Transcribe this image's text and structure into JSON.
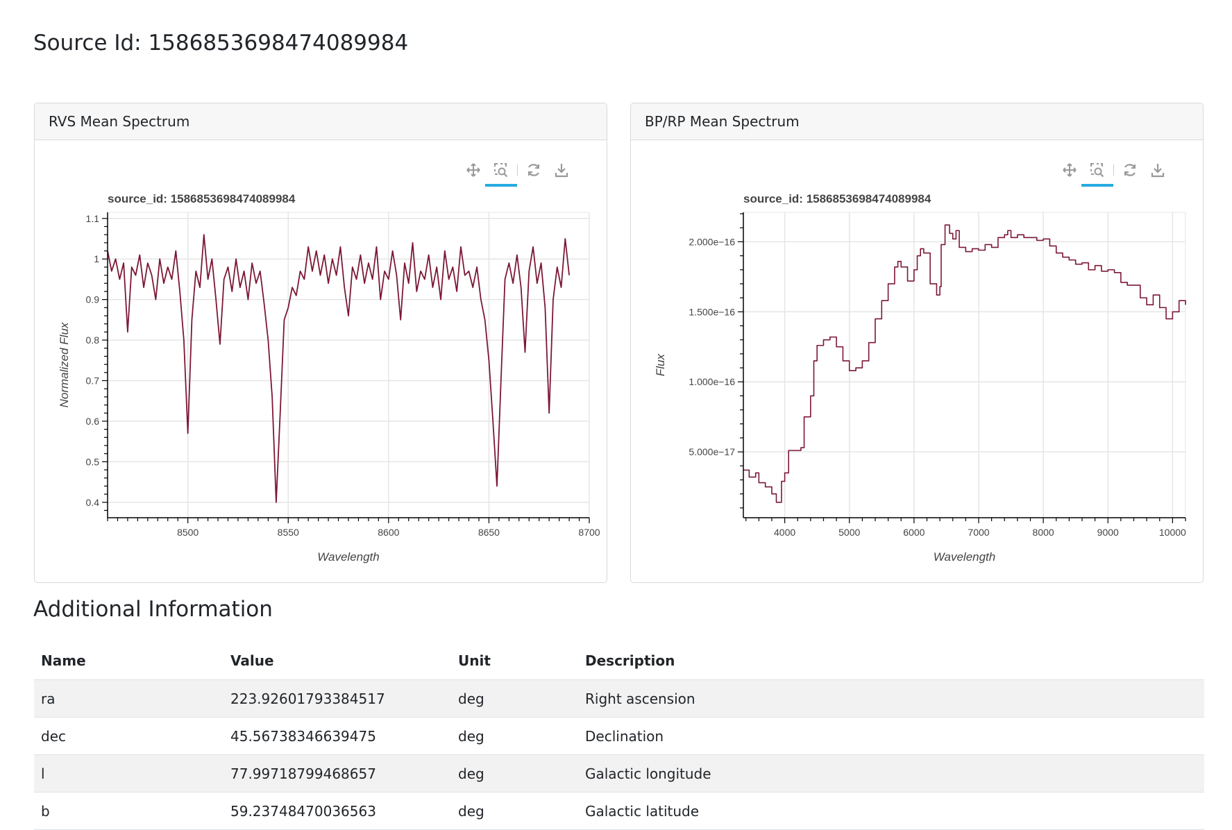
{
  "page": {
    "title": "Source Id: 1586853698474089984"
  },
  "panels": [
    {
      "header": "RVS Mean Spectrum",
      "tools": [
        "pan-icon",
        "box-zoom-icon",
        "reset-icon",
        "save-icon"
      ]
    },
    {
      "header": "BP/RP Mean Spectrum",
      "tools": [
        "pan-icon",
        "box-zoom-icon",
        "reset-icon",
        "save-icon"
      ]
    }
  ],
  "colors": {
    "line": "#7b1734",
    "active_tool": "#26aae1"
  },
  "chart_data": [
    {
      "type": "line",
      "title": "source_id: 1586853698474089984",
      "xlabel": "Wavelength",
      "ylabel": "Normalized Flux",
      "xlim": [
        8460,
        8700
      ],
      "ylim": [
        0.362,
        1.115
      ],
      "xticks": [
        8500,
        8550,
        8600,
        8650,
        8700
      ],
      "xtick_labels": [
        "8500",
        "8550",
        "8600",
        "8650",
        "8700"
      ],
      "yticks": [
        0.4,
        0.5,
        0.6,
        0.7,
        0.8,
        0.9,
        1.0,
        1.1
      ],
      "ytick_labels": [
        "0.4",
        "0.5",
        "0.6",
        "0.7",
        "0.8",
        "0.9",
        "1",
        "1.1"
      ],
      "grid": true,
      "x_start": 8460,
      "x_step": 2,
      "y": [
        1.02,
        0.97,
        1.0,
        0.95,
        0.99,
        0.82,
        0.98,
        0.96,
        1.01,
        0.93,
        0.99,
        0.96,
        0.9,
        1.0,
        0.94,
        0.98,
        0.95,
        1.02,
        0.92,
        0.8,
        0.57,
        0.85,
        0.97,
        0.93,
        1.06,
        0.95,
        1.0,
        0.9,
        0.79,
        0.95,
        0.98,
        0.92,
        1.0,
        0.93,
        0.97,
        0.9,
        0.99,
        0.94,
        0.97,
        0.89,
        0.8,
        0.66,
        0.4,
        0.62,
        0.85,
        0.88,
        0.93,
        0.91,
        0.97,
        0.95,
        1.03,
        0.97,
        1.02,
        0.96,
        1.01,
        0.94,
        1.0,
        0.96,
        1.03,
        0.93,
        0.86,
        0.98,
        0.95,
        1.01,
        0.94,
        0.99,
        0.95,
        1.03,
        0.9,
        0.97,
        0.95,
        1.02,
        0.96,
        0.85,
        0.99,
        0.94,
        1.04,
        0.92,
        0.97,
        0.95,
        1.01,
        0.93,
        0.98,
        0.9,
        1.02,
        0.95,
        0.98,
        0.92,
        1.03,
        0.96,
        0.97,
        0.93,
        0.98,
        0.9,
        0.85,
        0.75,
        0.6,
        0.44,
        0.7,
        0.95,
        0.99,
        0.94,
        1.01,
        0.93,
        0.77,
        0.97,
        1.03,
        0.94,
        0.99,
        0.88,
        0.62,
        0.9,
        0.98,
        0.93,
        1.05,
        0.96
      ]
    },
    {
      "type": "line",
      "title": "source_id: 1586853698474089984",
      "xlabel": "Wavelength",
      "ylabel": "Flux",
      "xlim": [
        3360,
        10200
      ],
      "ylim": [
        3e-18,
        2.21e-16
      ],
      "xticks": [
        4000,
        5000,
        6000,
        7000,
        8000,
        9000,
        10000
      ],
      "xtick_labels": [
        "4000",
        "5000",
        "6000",
        "7000",
        "8000",
        "9000",
        "10000"
      ],
      "yticks": [
        5e-17,
        1e-16,
        1.5e-16,
        2e-16
      ],
      "ytick_labels": [
        "5.000e−17",
        "1.000e−16",
        "1.500e−16",
        "2.000e−16"
      ],
      "grid": true,
      "y_unit": 1e-17,
      "x": [
        3360,
        3450,
        3550,
        3600,
        3700,
        3800,
        3870,
        3950,
        4000,
        4060,
        4150,
        4250,
        4300,
        4400,
        4450,
        4500,
        4600,
        4700,
        4800,
        4900,
        5000,
        5100,
        5200,
        5300,
        5400,
        5500,
        5600,
        5700,
        5750,
        5800,
        5900,
        6000,
        6050,
        6100,
        6150,
        6250,
        6350,
        6400,
        6420,
        6480,
        6550,
        6600,
        6650,
        6700,
        6800,
        6900,
        7000,
        7100,
        7200,
        7300,
        7400,
        7450,
        7500,
        7600,
        7700,
        7800,
        7900,
        8000,
        8100,
        8200,
        8300,
        8400,
        8500,
        8600,
        8700,
        8800,
        8900,
        9000,
        9100,
        9200,
        9300,
        9400,
        9500,
        9600,
        9700,
        9800,
        9900,
        10000,
        10100,
        10200
      ],
      "y": [
        3.7,
        3.2,
        3.5,
        2.8,
        2.5,
        2.0,
        1.4,
        2.9,
        3.5,
        5.1,
        5.1,
        5.3,
        7.5,
        9.0,
        11.5,
        12.6,
        13.0,
        13.2,
        12.5,
        11.5,
        10.8,
        11.0,
        11.5,
        12.8,
        14.5,
        15.8,
        17.0,
        18.2,
        18.6,
        18.2,
        17.2,
        18.0,
        19.0,
        19.5,
        19.2,
        17.0,
        16.2,
        16.8,
        19.8,
        21.2,
        20.6,
        20.2,
        20.8,
        19.6,
        19.3,
        19.5,
        19.4,
        19.8,
        19.6,
        20.3,
        20.5,
        20.8,
        20.3,
        20.5,
        20.3,
        20.3,
        20.1,
        20.2,
        19.7,
        19.2,
        18.9,
        18.7,
        18.4,
        18.5,
        18.0,
        18.3,
        17.9,
        18.0,
        17.8,
        17.1,
        16.9,
        16.9,
        16.0,
        15.5,
        16.2,
        15.3,
        14.5,
        15.0,
        15.8,
        15.5
      ]
    }
  ],
  "additional": {
    "title": "Additional Information",
    "columns": [
      "Name",
      "Value",
      "Unit",
      "Description"
    ],
    "rows": [
      [
        "ra",
        "223.92601793384517",
        "deg",
        "Right ascension"
      ],
      [
        "dec",
        "45.56738346639475",
        "deg",
        "Declination"
      ],
      [
        "l",
        "77.99718799468657",
        "deg",
        "Galactic longitude"
      ],
      [
        "b",
        "59.23748470036563",
        "deg",
        "Galactic latitude"
      ]
    ]
  }
}
